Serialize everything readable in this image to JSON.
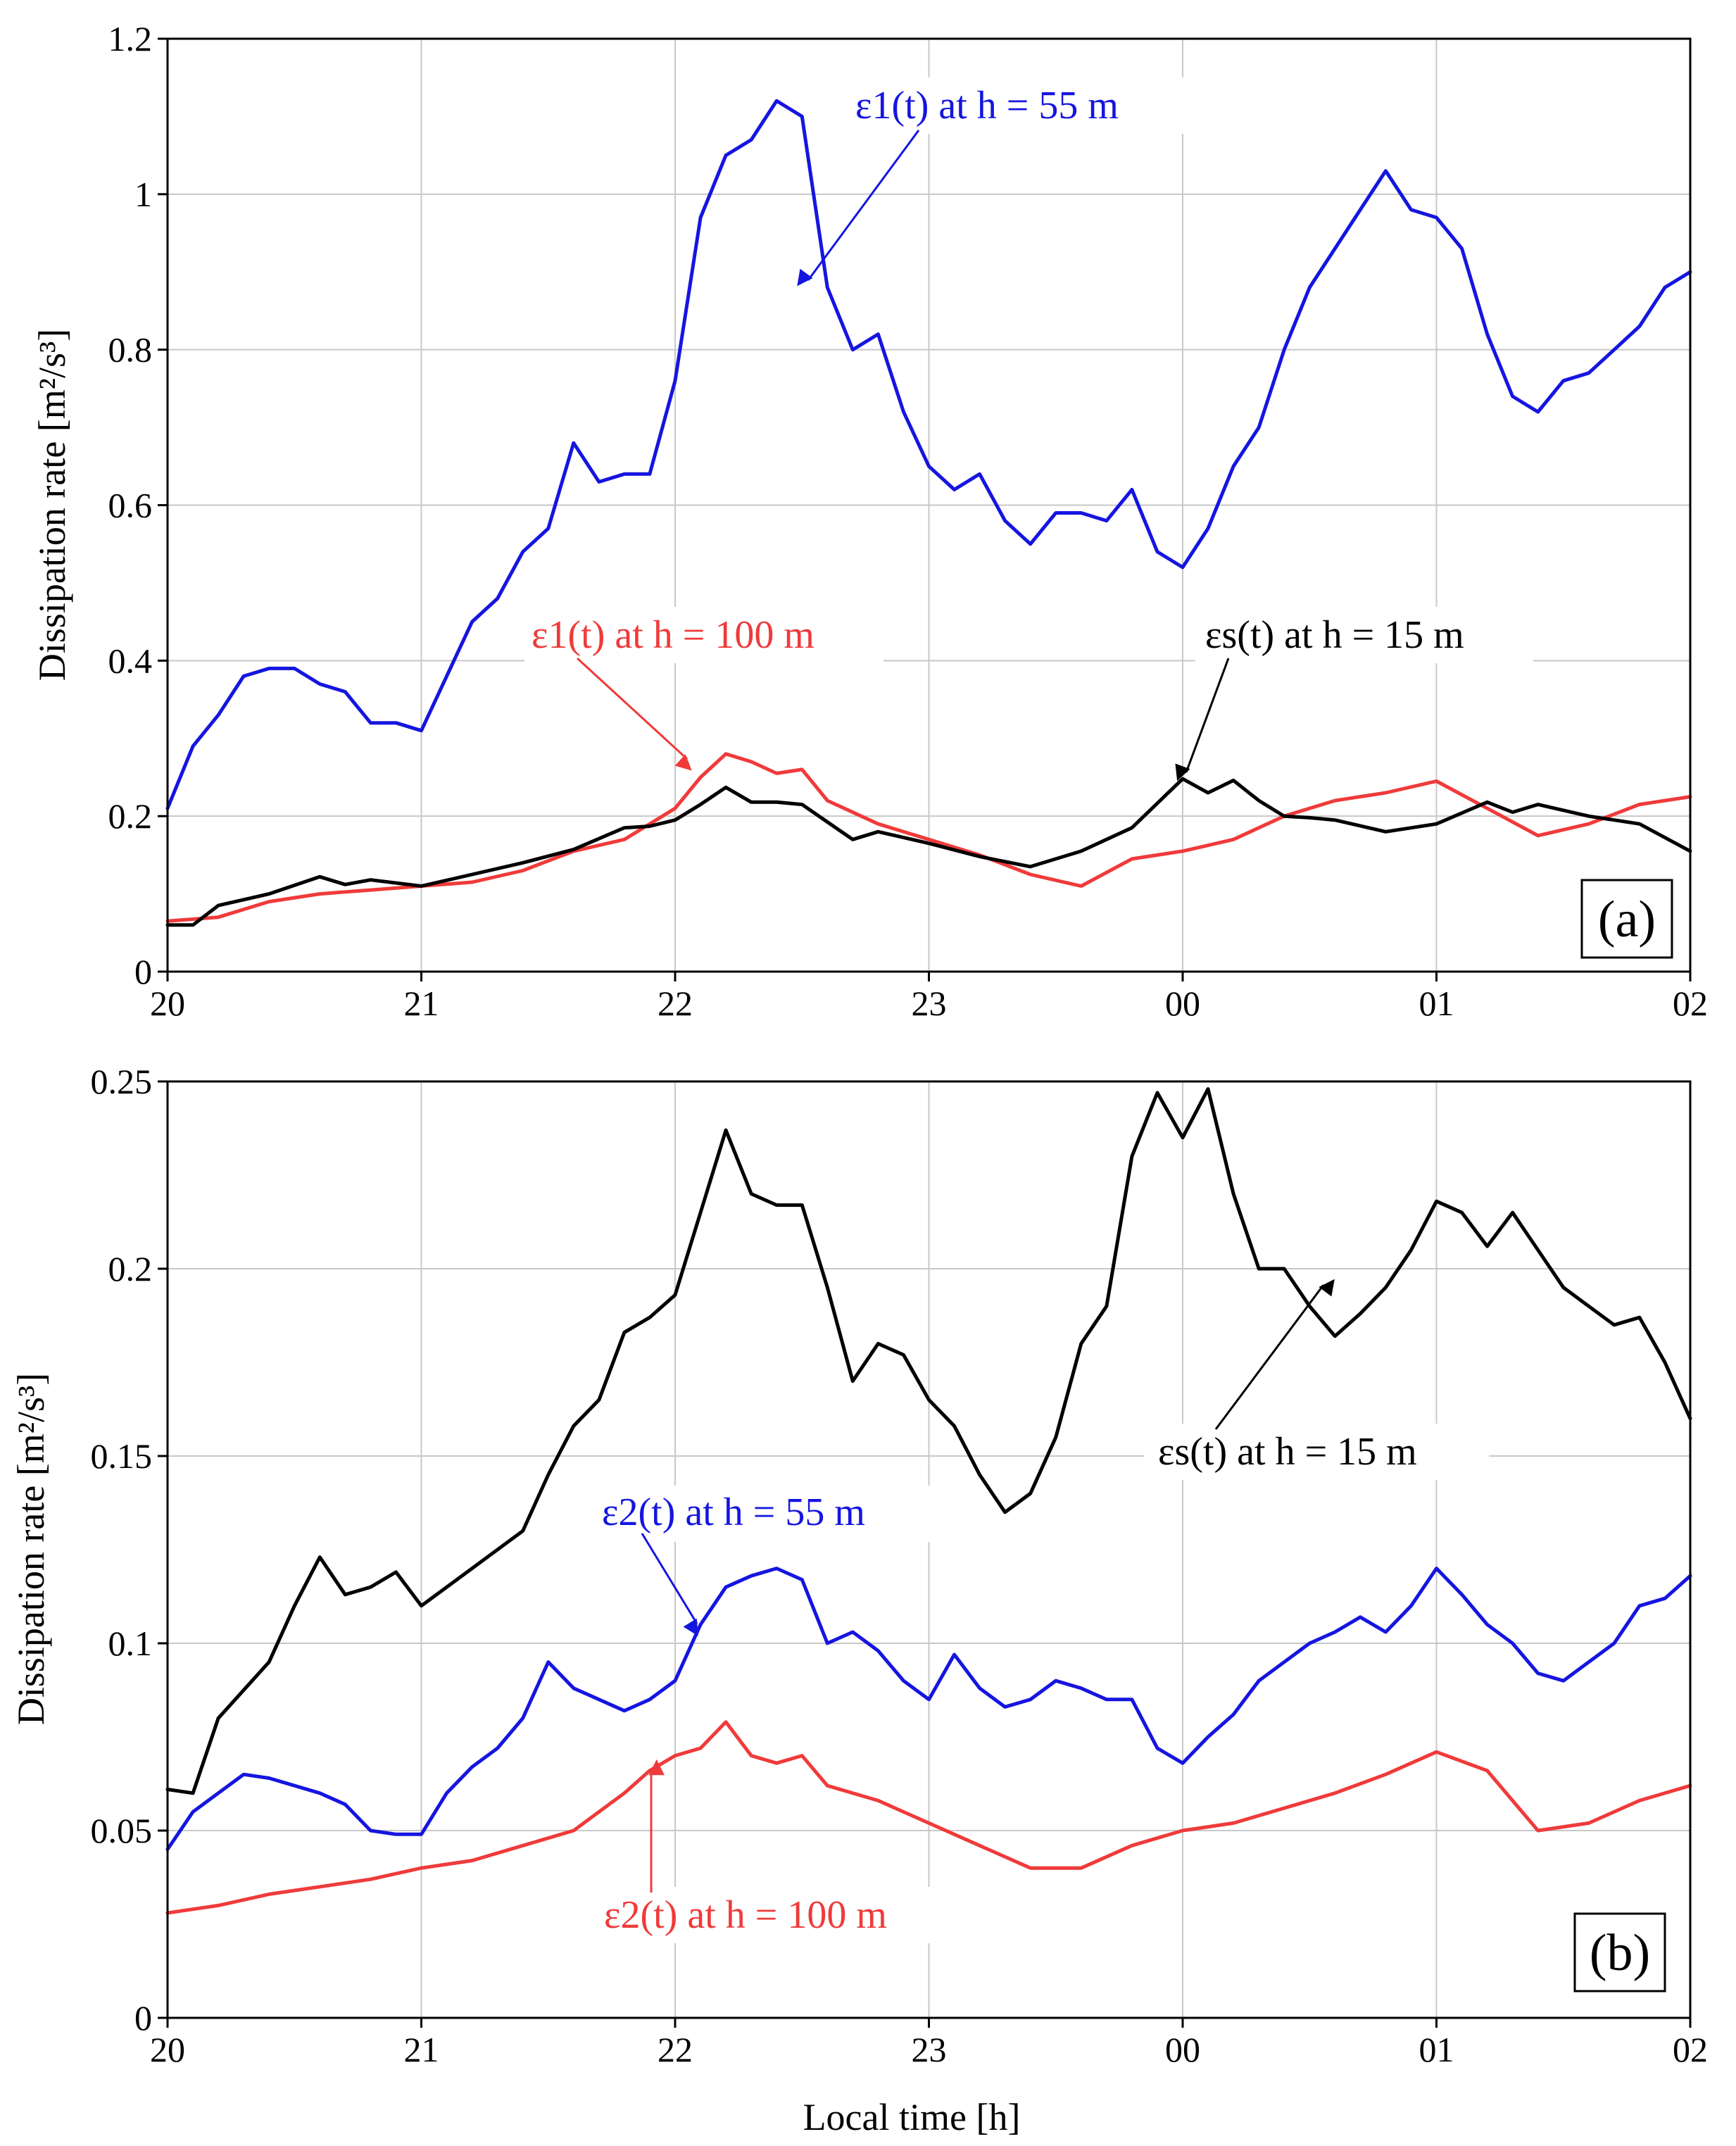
{
  "figure": {
    "xlabel": "Local time [h]",
    "xticks": [
      "20",
      "21",
      "22",
      "23",
      "00",
      "01",
      "02"
    ]
  },
  "chart_data": [
    {
      "type": "line",
      "panel_label": "(a)",
      "xlabel": "",
      "ylabel": "Dissipation rate [m²/s³]",
      "xlim": [
        0,
        6
      ],
      "ylim": [
        0,
        1.2
      ],
      "x_tick_labels": [
        "20",
        "21",
        "22",
        "23",
        "00",
        "01",
        "02"
      ],
      "y_ticks": [
        0,
        0.2,
        0.4,
        0.6,
        0.8,
        1,
        1.2
      ],
      "y_tick_labels": [
        "0",
        "0.2",
        "0.4",
        "0.6",
        "0.8",
        "1",
        "1.2"
      ],
      "grid": true,
      "series": [
        {
          "name": "ε1(t) at h = 55 m",
          "color": "#1515e0",
          "x": [
            0,
            0.1,
            0.2,
            0.3,
            0.4,
            0.5,
            0.6,
            0.7,
            0.8,
            0.9,
            1,
            1.1,
            1.2,
            1.3,
            1.4,
            1.5,
            1.6,
            1.7,
            1.8,
            1.9,
            2,
            2.1,
            2.2,
            2.3,
            2.4,
            2.5,
            2.6,
            2.7,
            2.8,
            2.9,
            3,
            3.1,
            3.2,
            3.3,
            3.4,
            3.5,
            3.6,
            3.7,
            3.8,
            3.9,
            4,
            4.1,
            4.2,
            4.3,
            4.4,
            4.5,
            4.6,
            4.7,
            4.8,
            4.9,
            5,
            5.1,
            5.2,
            5.3,
            5.4,
            5.5,
            5.6,
            5.7,
            5.8,
            5.9,
            6
          ],
          "y": [
            0.21,
            0.29,
            0.33,
            0.38,
            0.39,
            0.39,
            0.37,
            0.36,
            0.32,
            0.32,
            0.31,
            0.38,
            0.45,
            0.48,
            0.54,
            0.57,
            0.68,
            0.63,
            0.64,
            0.64,
            0.76,
            0.97,
            1.05,
            1.07,
            1.12,
            1.1,
            0.88,
            0.8,
            0.82,
            0.72,
            0.65,
            0.62,
            0.64,
            0.58,
            0.55,
            0.59,
            0.59,
            0.58,
            0.62,
            0.54,
            0.52,
            0.57,
            0.65,
            0.7,
            0.8,
            0.88,
            0.93,
            0.98,
            1.03,
            0.98,
            0.97,
            0.93,
            0.82,
            0.74,
            0.72,
            0.76,
            0.77,
            0.8,
            0.83,
            0.88,
            0.9
          ]
        },
        {
          "name": "ε1(t) at h = 100 m",
          "color": "#f03a3a",
          "x": [
            0,
            0.2,
            0.4,
            0.6,
            0.8,
            1,
            1.2,
            1.4,
            1.6,
            1.8,
            2,
            2.1,
            2.2,
            2.3,
            2.4,
            2.5,
            2.6,
            2.8,
            3,
            3.2,
            3.4,
            3.6,
            3.8,
            4,
            4.2,
            4.4,
            4.6,
            4.8,
            5,
            5.2,
            5.4,
            5.6,
            5.8,
            6
          ],
          "y": [
            0.065,
            0.07,
            0.09,
            0.1,
            0.105,
            0.11,
            0.115,
            0.13,
            0.155,
            0.17,
            0.21,
            0.25,
            0.28,
            0.27,
            0.255,
            0.26,
            0.22,
            0.19,
            0.17,
            0.15,
            0.125,
            0.11,
            0.145,
            0.155,
            0.17,
            0.2,
            0.22,
            0.23,
            0.245,
            0.21,
            0.175,
            0.19,
            0.215,
            0.225
          ]
        },
        {
          "name": "εs(t) at h = 15 m",
          "color": "#000000",
          "x": [
            0,
            0.1,
            0.2,
            0.4,
            0.6,
            0.7,
            0.8,
            1,
            1.2,
            1.4,
            1.6,
            1.8,
            1.9,
            2,
            2.1,
            2.2,
            2.3,
            2.4,
            2.5,
            2.7,
            2.8,
            3,
            3.2,
            3.4,
            3.6,
            3.8,
            4,
            4.1,
            4.2,
            4.3,
            4.4,
            4.5,
            4.6,
            4.8,
            5,
            5.2,
            5.3,
            5.4,
            5.6,
            5.8,
            6
          ],
          "y": [
            0.06,
            0.06,
            0.085,
            0.1,
            0.122,
            0.112,
            0.118,
            0.11,
            0.125,
            0.14,
            0.157,
            0.185,
            0.187,
            0.195,
            0.215,
            0.237,
            0.218,
            0.218,
            0.215,
            0.17,
            0.18,
            0.165,
            0.148,
            0.135,
            0.155,
            0.185,
            0.248,
            0.23,
            0.246,
            0.22,
            0.2,
            0.198,
            0.195,
            0.18,
            0.19,
            0.218,
            0.205,
            0.215,
            0.2,
            0.19,
            0.155
          ]
        }
      ],
      "annotations": [
        {
          "text": "ε1(t) at h = 55 m",
          "color": "#1515e0"
        },
        {
          "text": "ε1(t) at h = 100 m",
          "color": "#f03a3a"
        },
        {
          "text": "εs(t) at h = 15 m",
          "color": "#000000"
        }
      ]
    },
    {
      "type": "line",
      "panel_label": "(b)",
      "xlabel": "Local time [h]",
      "ylabel": "Dissipation rate [m²/s³]",
      "xlim": [
        0,
        6
      ],
      "ylim": [
        0,
        0.25
      ],
      "x_tick_labels": [
        "20",
        "21",
        "22",
        "23",
        "00",
        "01",
        "02"
      ],
      "y_ticks": [
        0,
        0.05,
        0.1,
        0.15,
        0.2,
        0.25
      ],
      "y_tick_labels": [
        "0",
        "0.05",
        "0.1",
        "0.15",
        "0.2",
        "0.25"
      ],
      "grid": true,
      "series": [
        {
          "name": "εs(t) at h = 15 m",
          "color": "#000000",
          "x": [
            0,
            0.1,
            0.2,
            0.4,
            0.5,
            0.6,
            0.7,
            0.8,
            0.9,
            1,
            1.2,
            1.4,
            1.5,
            1.6,
            1.7,
            1.8,
            1.9,
            2,
            2.1,
            2.2,
            2.3,
            2.4,
            2.5,
            2.6,
            2.7,
            2.8,
            2.9,
            3,
            3.1,
            3.2,
            3.3,
            3.4,
            3.5,
            3.6,
            3.7,
            3.8,
            3.9,
            4,
            4.1,
            4.2,
            4.3,
            4.4,
            4.5,
            4.6,
            4.7,
            4.8,
            4.9,
            5,
            5.1,
            5.2,
            5.3,
            5.4,
            5.5,
            5.6,
            5.7,
            5.8,
            5.9,
            6
          ],
          "y": [
            0.061,
            0.06,
            0.08,
            0.095,
            0.11,
            0.123,
            0.113,
            0.115,
            0.119,
            0.11,
            0.12,
            0.13,
            0.145,
            0.158,
            0.165,
            0.183,
            0.187,
            0.193,
            0.215,
            0.237,
            0.22,
            0.217,
            0.217,
            0.195,
            0.17,
            0.18,
            0.177,
            0.165,
            0.158,
            0.145,
            0.135,
            0.14,
            0.155,
            0.18,
            0.19,
            0.23,
            0.247,
            0.235,
            0.248,
            0.22,
            0.2,
            0.2,
            0.19,
            0.182,
            0.188,
            0.195,
            0.205,
            0.218,
            0.215,
            0.206,
            0.215,
            0.205,
            0.195,
            0.19,
            0.185,
            0.187,
            0.175,
            0.16
          ]
        },
        {
          "name": "ε2(t) at h = 55 m",
          "color": "#1515e0",
          "x": [
            0,
            0.1,
            0.2,
            0.3,
            0.4,
            0.5,
            0.6,
            0.7,
            0.8,
            0.9,
            1,
            1.1,
            1.2,
            1.3,
            1.4,
            1.5,
            1.6,
            1.7,
            1.8,
            1.9,
            2,
            2.1,
            2.2,
            2.3,
            2.4,
            2.5,
            2.6,
            2.7,
            2.8,
            2.9,
            3,
            3.1,
            3.2,
            3.3,
            3.4,
            3.5,
            3.6,
            3.7,
            3.8,
            3.9,
            4,
            4.1,
            4.2,
            4.3,
            4.4,
            4.5,
            4.6,
            4.7,
            4.8,
            4.9,
            5,
            5.1,
            5.2,
            5.3,
            5.4,
            5.5,
            5.6,
            5.7,
            5.8,
            5.9,
            6
          ],
          "y": [
            0.045,
            0.055,
            0.06,
            0.065,
            0.064,
            0.062,
            0.06,
            0.057,
            0.05,
            0.049,
            0.049,
            0.06,
            0.067,
            0.072,
            0.08,
            0.095,
            0.088,
            0.085,
            0.082,
            0.085,
            0.09,
            0.105,
            0.115,
            0.118,
            0.12,
            0.117,
            0.1,
            0.103,
            0.098,
            0.09,
            0.085,
            0.097,
            0.088,
            0.083,
            0.085,
            0.09,
            0.088,
            0.085,
            0.085,
            0.072,
            0.068,
            0.075,
            0.081,
            0.09,
            0.095,
            0.1,
            0.103,
            0.107,
            0.103,
            0.11,
            0.12,
            0.113,
            0.105,
            0.1,
            0.092,
            0.09,
            0.095,
            0.1,
            0.11,
            0.112,
            0.118
          ]
        },
        {
          "name": "ε2(t) at h = 100 m",
          "color": "#f03a3a",
          "x": [
            0,
            0.2,
            0.4,
            0.6,
            0.8,
            1,
            1.2,
            1.4,
            1.6,
            1.8,
            1.9,
            2,
            2.1,
            2.2,
            2.3,
            2.4,
            2.5,
            2.6,
            2.8,
            3,
            3.2,
            3.4,
            3.6,
            3.8,
            4,
            4.2,
            4.4,
            4.6,
            4.8,
            5,
            5.2,
            5.4,
            5.6,
            5.8,
            6
          ],
          "y": [
            0.028,
            0.03,
            0.033,
            0.035,
            0.037,
            0.04,
            0.042,
            0.046,
            0.05,
            0.06,
            0.066,
            0.07,
            0.072,
            0.079,
            0.07,
            0.068,
            0.07,
            0.062,
            0.058,
            0.052,
            0.046,
            0.04,
            0.04,
            0.046,
            0.05,
            0.052,
            0.056,
            0.06,
            0.065,
            0.071,
            0.066,
            0.05,
            0.052,
            0.058,
            0.062
          ]
        }
      ],
      "annotations": [
        {
          "text": "εs(t) at h = 15 m",
          "color": "#000000"
        },
        {
          "text": "ε2(t) at h = 55 m",
          "color": "#1515e0"
        },
        {
          "text": "ε2(t) at h = 100 m",
          "color": "#f03a3a"
        }
      ]
    }
  ]
}
